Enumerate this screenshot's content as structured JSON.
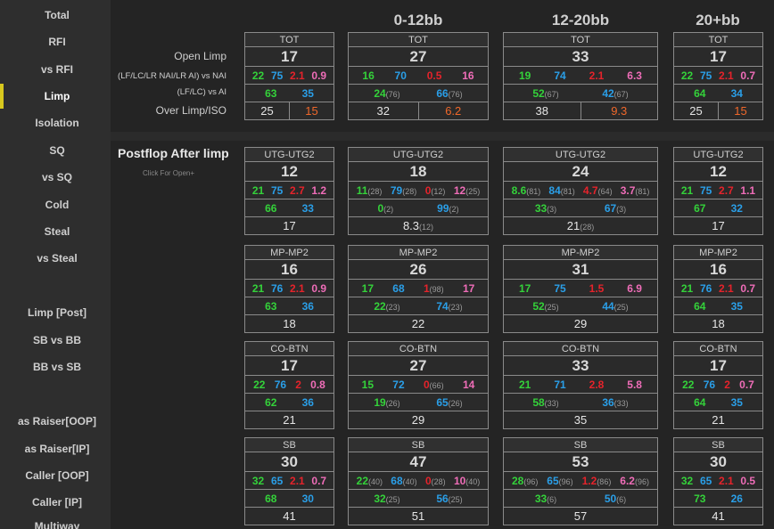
{
  "sidebar": {
    "items": [
      "Total",
      "RFI",
      "vs RFI",
      "Limp",
      "Isolation",
      "SQ",
      "vs SQ",
      "Cold",
      "Steal",
      "vs Steal",
      "Limp [Post]",
      "SB vs BB",
      "BB vs SB",
      "as Raiser[OOP]",
      "as Raiser[IP]",
      "Caller [OOP]",
      "Caller [IP]",
      "Multiway"
    ],
    "active": "Limp"
  },
  "columns": [
    "0-12bb",
    "12-20bb",
    "20+bb"
  ],
  "top_labels": {
    "open_limp": "Open Limp",
    "nai": "(LF/LC/LR NAI/LR AI) vs NAI",
    "ai": "(LF/LC) vs AI",
    "overlimp": "Over Limp/ISO"
  },
  "top": [
    {
      "hdr": "TOT",
      "big": "17",
      "r4": [
        "22",
        "75",
        "2.1",
        "0.9"
      ],
      "r2": [
        "63",
        "35"
      ],
      "split": [
        "25",
        "15"
      ]
    },
    {
      "hdr": "TOT",
      "big": "27",
      "r4": [
        "16",
        "70",
        "0.5",
        "16"
      ],
      "r2": [
        "24",
        "66"
      ],
      "r2s": [
        "(76)",
        "(76)"
      ],
      "split": [
        "32",
        "6.2"
      ]
    },
    {
      "hdr": "TOT",
      "big": "33",
      "r4": [
        "19",
        "74",
        "2.1",
        "6.3"
      ],
      "r2": [
        "52",
        "42"
      ],
      "r2s": [
        "(67)",
        "(67)"
      ],
      "split": [
        "38",
        "9.3"
      ]
    },
    {
      "hdr": "TOT",
      "big": "17",
      "r4": [
        "22",
        "75",
        "2.1",
        "0.7"
      ],
      "r2": [
        "64",
        "34"
      ],
      "split": [
        "25",
        "15"
      ]
    }
  ],
  "postflop": {
    "title": "Postflop After limp",
    "subtitle": "Click For Open+"
  },
  "groups": [
    {
      "hdr": "UTG-UTG2",
      "cells": [
        {
          "big": "12",
          "r4": [
            "21",
            "75",
            "2.7",
            "1.2"
          ],
          "r2": [
            "66",
            "33"
          ],
          "r1": "17"
        },
        {
          "big": "18",
          "r4": [
            "11",
            "79",
            "0",
            "12"
          ],
          "r4s": [
            "(28)",
            "(28)",
            "(12)",
            "(25)"
          ],
          "r2": [
            "0",
            "99"
          ],
          "r2s": [
            "(2)",
            "(2)"
          ],
          "r1": "8.3",
          "r1s": "(12)"
        },
        {
          "big": "24",
          "r4": [
            "8.6",
            "84",
            "4.7",
            "3.7"
          ],
          "r4s": [
            "(81)",
            "(81)",
            "(64)",
            "(81)"
          ],
          "r2": [
            "33",
            "67"
          ],
          "r2s": [
            "(3)",
            "(3)"
          ],
          "r1": "21",
          "r1s": "(28)"
        },
        {
          "big": "12",
          "r4": [
            "21",
            "75",
            "2.7",
            "1.1"
          ],
          "r2": [
            "67",
            "32"
          ],
          "r1": "17"
        }
      ]
    },
    {
      "hdr": "MP-MP2",
      "cells": [
        {
          "big": "16",
          "r4": [
            "21",
            "76",
            "2.1",
            "0.9"
          ],
          "r2": [
            "63",
            "36"
          ],
          "r1": "18"
        },
        {
          "big": "26",
          "r4": [
            "17",
            "68",
            "1",
            "17"
          ],
          "r4s": [
            "",
            "",
            "(98)",
            ""
          ],
          "r2": [
            "22",
            "74"
          ],
          "r2s": [
            "(23)",
            "(23)"
          ],
          "r1": "22"
        },
        {
          "big": "31",
          "r4": [
            "17",
            "75",
            "1.5",
            "6.9"
          ],
          "r2": [
            "52",
            "44"
          ],
          "r2s": [
            "(25)",
            "(25)"
          ],
          "r1": "29"
        },
        {
          "big": "16",
          "r4": [
            "21",
            "76",
            "2.1",
            "0.7"
          ],
          "r2": [
            "64",
            "35"
          ],
          "r1": "18"
        }
      ]
    },
    {
      "hdr": "CO-BTN",
      "cells": [
        {
          "big": "17",
          "r4": [
            "22",
            "76",
            "2",
            "0.8"
          ],
          "r2": [
            "62",
            "36"
          ],
          "r1": "21"
        },
        {
          "big": "27",
          "r4": [
            "15",
            "72",
            "0",
            "14"
          ],
          "r4s": [
            "",
            "",
            "(66)",
            ""
          ],
          "r2": [
            "19",
            "65"
          ],
          "r2s": [
            "(26)",
            "(26)"
          ],
          "r1": "29"
        },
        {
          "big": "33",
          "r4": [
            "21",
            "71",
            "2.8",
            "5.8"
          ],
          "r2": [
            "58",
            "36"
          ],
          "r2s": [
            "(33)",
            "(33)"
          ],
          "r1": "35"
        },
        {
          "big": "17",
          "r4": [
            "22",
            "76",
            "2",
            "0.7"
          ],
          "r2": [
            "64",
            "35"
          ],
          "r1": "21"
        }
      ]
    },
    {
      "hdr": "SB",
      "cells": [
        {
          "big": "30",
          "r4": [
            "32",
            "65",
            "2.1",
            "0.7"
          ],
          "r2": [
            "68",
            "30"
          ],
          "r1": "41"
        },
        {
          "big": "47",
          "r4": [
            "22",
            "68",
            "0",
            "10"
          ],
          "r4s": [
            "(40)",
            "(40)",
            "(28)",
            "(40)"
          ],
          "r2": [
            "32",
            "56"
          ],
          "r2s": [
            "(25)",
            "(25)"
          ],
          "r1": "51"
        },
        {
          "big": "53",
          "r4": [
            "28",
            "65",
            "1.2",
            "6.2"
          ],
          "r4s": [
            "(96)",
            "(96)",
            "(86)",
            "(96)"
          ],
          "r2": [
            "33",
            "50"
          ],
          "r2s": [
            "(6)",
            "(6)"
          ],
          "r1": "57"
        },
        {
          "big": "30",
          "r4": [
            "32",
            "65",
            "2.1",
            "0.5"
          ],
          "r2": [
            "73",
            "26"
          ],
          "r1": "41"
        }
      ]
    }
  ]
}
